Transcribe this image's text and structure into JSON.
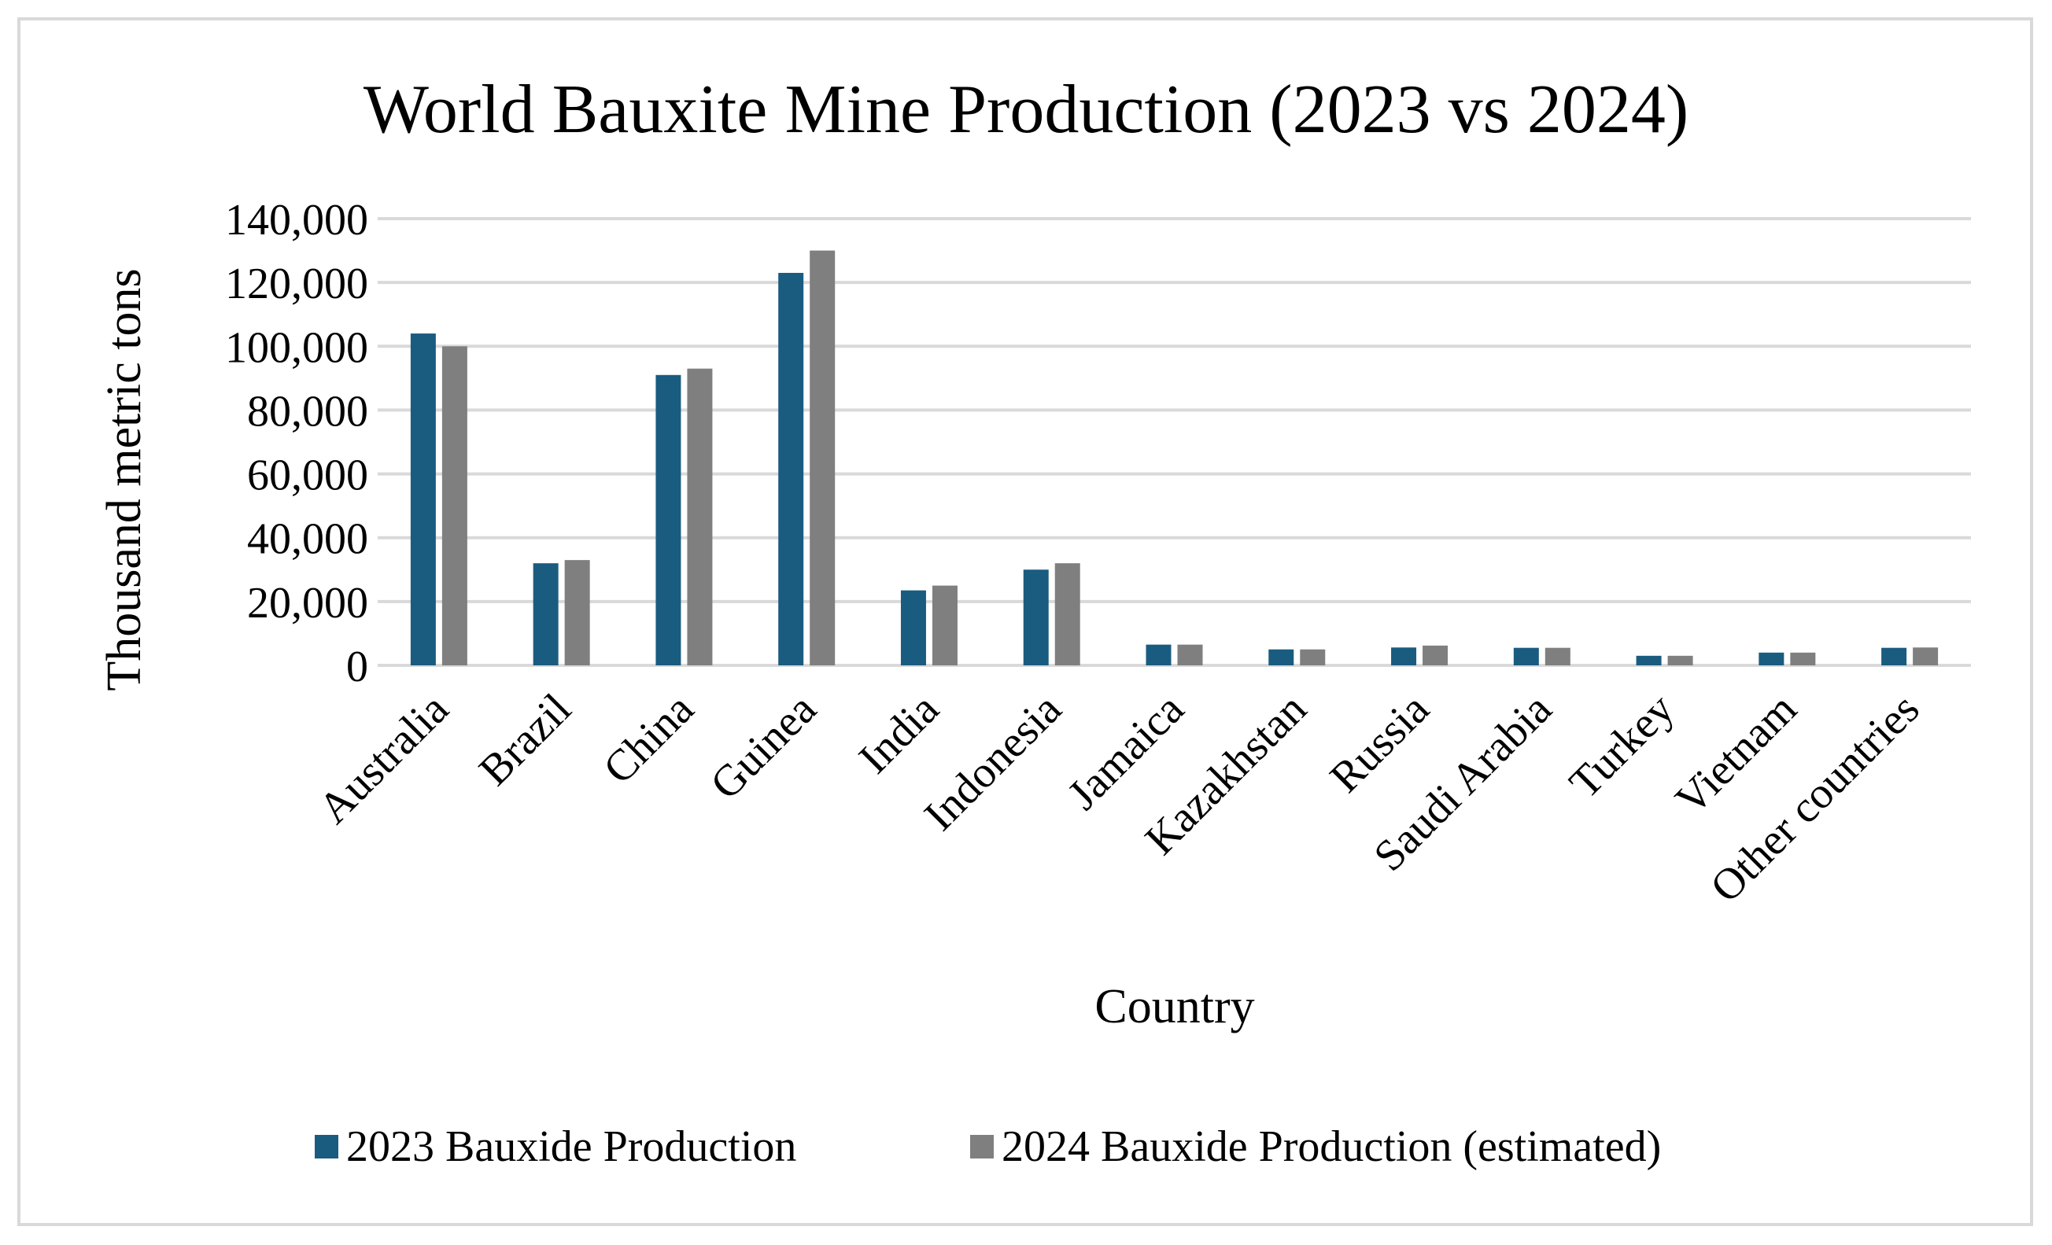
{
  "chart_data": {
    "type": "bar",
    "title": "World Bauxite Mine Production  (2023 vs 2024)",
    "xlabel": "Country",
    "ylabel": "Thousand metric tons",
    "categories": [
      "Australia",
      "Brazil",
      "China",
      "Guinea",
      "India",
      "Indonesia",
      "Jamaica",
      "Kazakhstan",
      "Russia",
      "Saudi Arabia",
      "Turkey",
      "Vietnam",
      "Other countries"
    ],
    "series": [
      {
        "name": "2023 Bauxide Production",
        "color": "#1a5c80",
        "values": [
          104000,
          32000,
          91000,
          123000,
          23500,
          30000,
          6500,
          5000,
          5600,
          5500,
          3000,
          4000,
          5500
        ]
      },
      {
        "name": "2024 Bauxide Production (estimated)",
        "color": "#7f7f7f",
        "values": [
          100000,
          33000,
          93000,
          130000,
          25000,
          32000,
          6500,
          5000,
          6200,
          5500,
          3000,
          4000,
          5600
        ]
      }
    ],
    "ylim": [
      0,
      140000
    ],
    "yticks": [
      {
        "value": 0,
        "label": "0"
      },
      {
        "value": 20000,
        "label": "20,000"
      },
      {
        "value": 40000,
        "label": "40,000"
      },
      {
        "value": 60000,
        "label": "60,000"
      },
      {
        "value": 80000,
        "label": "80,000"
      },
      {
        "value": 100000,
        "label": "100,000"
      },
      {
        "value": 120000,
        "label": "120,000"
      },
      {
        "value": 140000,
        "label": "140,000"
      }
    ],
    "grid": true,
    "legend_position": "bottom-center"
  }
}
